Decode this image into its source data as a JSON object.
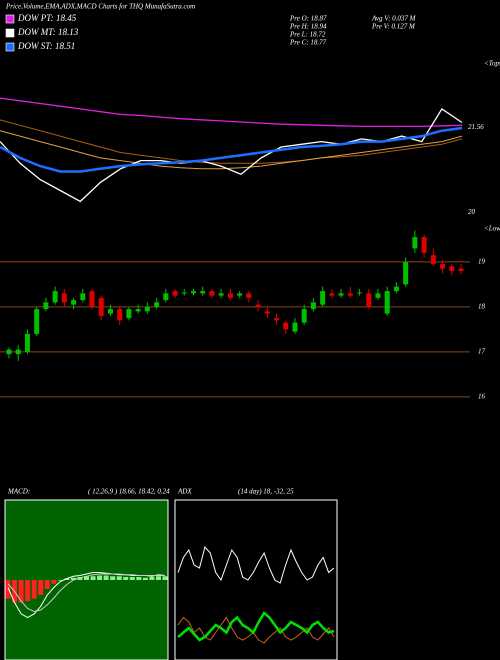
{
  "chart_data": [
    {
      "type": "line",
      "title": "Price,Volume,EMA,ADX,MACD Charts for THQ MunafaSutra.com",
      "annotations": [
        "Pre  O: 18.87",
        "Pre  H: 18.94",
        "Pre  L: 18.72",
        "Pre  C: 18.77",
        "Avg V: 0.037 M",
        "Pre  V: 0.127 M"
      ],
      "corner_label": "<Tops",
      "ylim": [
        19.95,
        22.8
      ],
      "yticks": [
        21.56,
        20
      ],
      "series": [
        {
          "name": "DOW PT: 18.45",
          "color": "#e020e0",
          "values": [
            22.1,
            22.05,
            22.0,
            21.95,
            21.9,
            21.85,
            21.8,
            21.78,
            21.75,
            21.72,
            21.7,
            21.68,
            21.66,
            21.64,
            21.62,
            21.61,
            21.6,
            21.59,
            21.58,
            21.58,
            21.58,
            21.58,
            21.59,
            21.6
          ]
        },
        {
          "color": "#b06010",
          "values": [
            21.7,
            21.6,
            21.5,
            21.4,
            21.3,
            21.2,
            21.1,
            21.05,
            21.0,
            20.95,
            20.92,
            20.9,
            20.9,
            20.9,
            20.92,
            20.95,
            21.0,
            21.02,
            21.05,
            21.1,
            21.15,
            21.2,
            21.25,
            21.35
          ]
        },
        {
          "color": "#e0a040",
          "values": [
            21.5,
            21.4,
            21.3,
            21.2,
            21.1,
            21.0,
            20.95,
            20.9,
            20.85,
            20.82,
            20.8,
            20.8,
            20.82,
            20.85,
            20.9,
            20.95,
            21.0,
            21.05,
            21.1,
            21.15,
            21.2,
            21.25,
            21.3,
            21.4
          ]
        },
        {
          "name": "DOW MT: 18.13",
          "color": "#ffffff",
          "values": [
            21.3,
            20.9,
            20.6,
            20.4,
            20.2,
            20.55,
            20.8,
            20.95,
            20.95,
            20.9,
            20.95,
            20.85,
            20.7,
            21.0,
            21.2,
            21.25,
            21.3,
            21.25,
            21.35,
            21.3,
            21.4,
            21.3,
            21.9,
            21.65
          ]
        },
        {
          "name": "DOW ST: 18.51",
          "color": "#1e6fff",
          "values": [
            21.2,
            21.0,
            20.85,
            20.75,
            20.75,
            20.8,
            20.85,
            20.88,
            20.9,
            20.92,
            20.95,
            21.0,
            21.05,
            21.1,
            21.15,
            21.2,
            21.22,
            21.25,
            21.3,
            21.3,
            21.35,
            21.4,
            21.5,
            21.55
          ]
        }
      ]
    },
    {
      "type": "candlestick",
      "corner_label": "<Lows",
      "ylim": [
        15.93,
        19.82
      ],
      "yticks": [
        16,
        17,
        18,
        19
      ],
      "grid": true,
      "up_color": "#00c000",
      "down_color": "#e00000",
      "open": [
        16.95,
        16.95,
        17.0,
        17.4,
        17.95,
        18.1,
        18.3,
        18.05,
        18.15,
        18.35,
        18.2,
        17.85,
        17.95,
        17.75,
        17.9,
        17.9,
        18.0,
        18.15,
        18.35,
        18.3,
        18.3,
        18.3,
        18.35,
        18.25,
        18.3,
        18.25,
        18.3,
        18.05,
        17.9,
        17.75,
        17.65,
        17.45,
        17.65,
        17.95,
        18.05,
        18.3,
        18.25,
        18.3,
        18.3,
        18.3,
        18.2,
        17.85,
        18.35,
        18.5,
        19.3,
        19.55,
        19.15,
        18.95,
        18.9,
        18.85
      ],
      "close": [
        17.05,
        17.05,
        17.4,
        17.95,
        18.1,
        18.35,
        18.1,
        18.15,
        18.3,
        18.0,
        17.8,
        17.95,
        17.7,
        17.95,
        17.95,
        18.0,
        18.1,
        18.3,
        18.25,
        18.32,
        18.35,
        18.35,
        18.25,
        18.3,
        18.2,
        18.3,
        18.2,
        18.0,
        17.85,
        17.7,
        17.5,
        17.65,
        17.95,
        18.1,
        18.35,
        18.25,
        18.3,
        18.25,
        18.32,
        18.0,
        18.3,
        18.35,
        18.45,
        19.0,
        19.55,
        19.2,
        18.95,
        18.85,
        18.8,
        18.8
      ],
      "high": [
        17.1,
        17.15,
        17.5,
        18.0,
        18.2,
        18.45,
        18.4,
        18.2,
        18.4,
        18.4,
        18.25,
        18.05,
        18.0,
        18.0,
        18.05,
        18.1,
        18.2,
        18.4,
        18.4,
        18.4,
        18.4,
        18.45,
        18.4,
        18.4,
        18.4,
        18.35,
        18.35,
        18.15,
        18.0,
        17.85,
        17.7,
        17.75,
        18.05,
        18.2,
        18.45,
        18.4,
        18.4,
        18.45,
        18.4,
        18.4,
        18.4,
        18.45,
        18.55,
        19.1,
        19.7,
        19.6,
        19.3,
        19.05,
        18.95,
        18.95
      ],
      "low": [
        16.85,
        16.8,
        16.95,
        17.35,
        17.9,
        18.05,
        18.0,
        17.95,
        18.1,
        17.95,
        17.7,
        17.8,
        17.6,
        17.7,
        17.85,
        17.85,
        17.95,
        18.1,
        18.2,
        18.25,
        18.25,
        18.25,
        18.2,
        18.2,
        18.15,
        18.2,
        18.1,
        17.9,
        17.75,
        17.6,
        17.4,
        17.4,
        17.6,
        17.9,
        18.0,
        18.2,
        18.2,
        18.2,
        18.25,
        17.95,
        18.15,
        17.8,
        18.3,
        18.45,
        19.2,
        19.1,
        18.9,
        18.75,
        18.7,
        18.72
      ]
    },
    {
      "type": "macd",
      "title": "MACD:",
      "subtitle": "( 12,26,9 ) 18.66, 18.42, 0.24",
      "ylim": [
        -1,
        1
      ],
      "histogram": [
        -0.25,
        -0.3,
        -0.3,
        -0.28,
        -0.25,
        -0.2,
        -0.12,
        -0.05,
        0.0,
        0.02,
        0.03,
        0.04,
        0.05,
        0.05,
        0.06,
        0.06,
        0.05,
        0.05,
        0.04,
        0.04,
        0.04,
        0.03,
        0.04,
        0.05,
        0.05
      ],
      "series": [
        {
          "color": "#ffffff",
          "values": [
            -0.1,
            -0.3,
            -0.45,
            -0.5,
            -0.45,
            -0.35,
            -0.2,
            -0.1,
            -0.02,
            0.02,
            0.05,
            0.06,
            0.08,
            0.1,
            0.1,
            0.09,
            0.08,
            0.07,
            0.07,
            0.06,
            0.06,
            0.06,
            0.05,
            0.07,
            0.06
          ]
        },
        {
          "color": "#cccccc",
          "values": [
            -0.05,
            -0.15,
            -0.28,
            -0.38,
            -0.42,
            -0.4,
            -0.33,
            -0.24,
            -0.14,
            -0.06,
            0,
            0.03,
            0.05,
            0.07,
            0.08,
            0.08,
            0.08,
            0.08,
            0.07,
            0.07,
            0.06,
            0.06,
            0.06,
            0.06,
            0.06
          ]
        }
      ]
    },
    {
      "type": "adx",
      "title": "ADX",
      "subtitle": "(14  day) 18, -32, 25",
      "ylim": [
        0,
        100
      ],
      "series": [
        {
          "color": "#ffffff",
          "values": [
            55,
            65,
            70,
            60,
            58,
            72,
            68,
            55,
            50,
            60,
            70,
            65,
            52,
            50,
            55,
            62,
            68,
            58,
            50,
            48,
            60,
            70,
            62,
            55,
            50,
            52,
            60,
            65,
            55,
            58
          ]
        },
        {
          "color": "#d06020",
          "values": [
            20,
            25,
            22,
            15,
            18,
            12,
            10,
            15,
            20,
            25,
            18,
            12,
            10,
            12,
            15,
            10,
            8,
            12,
            15,
            18,
            12,
            10,
            12,
            15,
            18,
            12,
            10,
            14,
            18,
            12
          ]
        },
        {
          "color": "#00e000",
          "values": [
            12,
            15,
            18,
            14,
            10,
            12,
            16,
            20,
            18,
            15,
            22,
            25,
            20,
            18,
            15,
            22,
            28,
            25,
            20,
            15,
            18,
            22,
            20,
            18,
            15,
            20,
            22,
            18,
            15,
            16
          ]
        }
      ]
    }
  ]
}
